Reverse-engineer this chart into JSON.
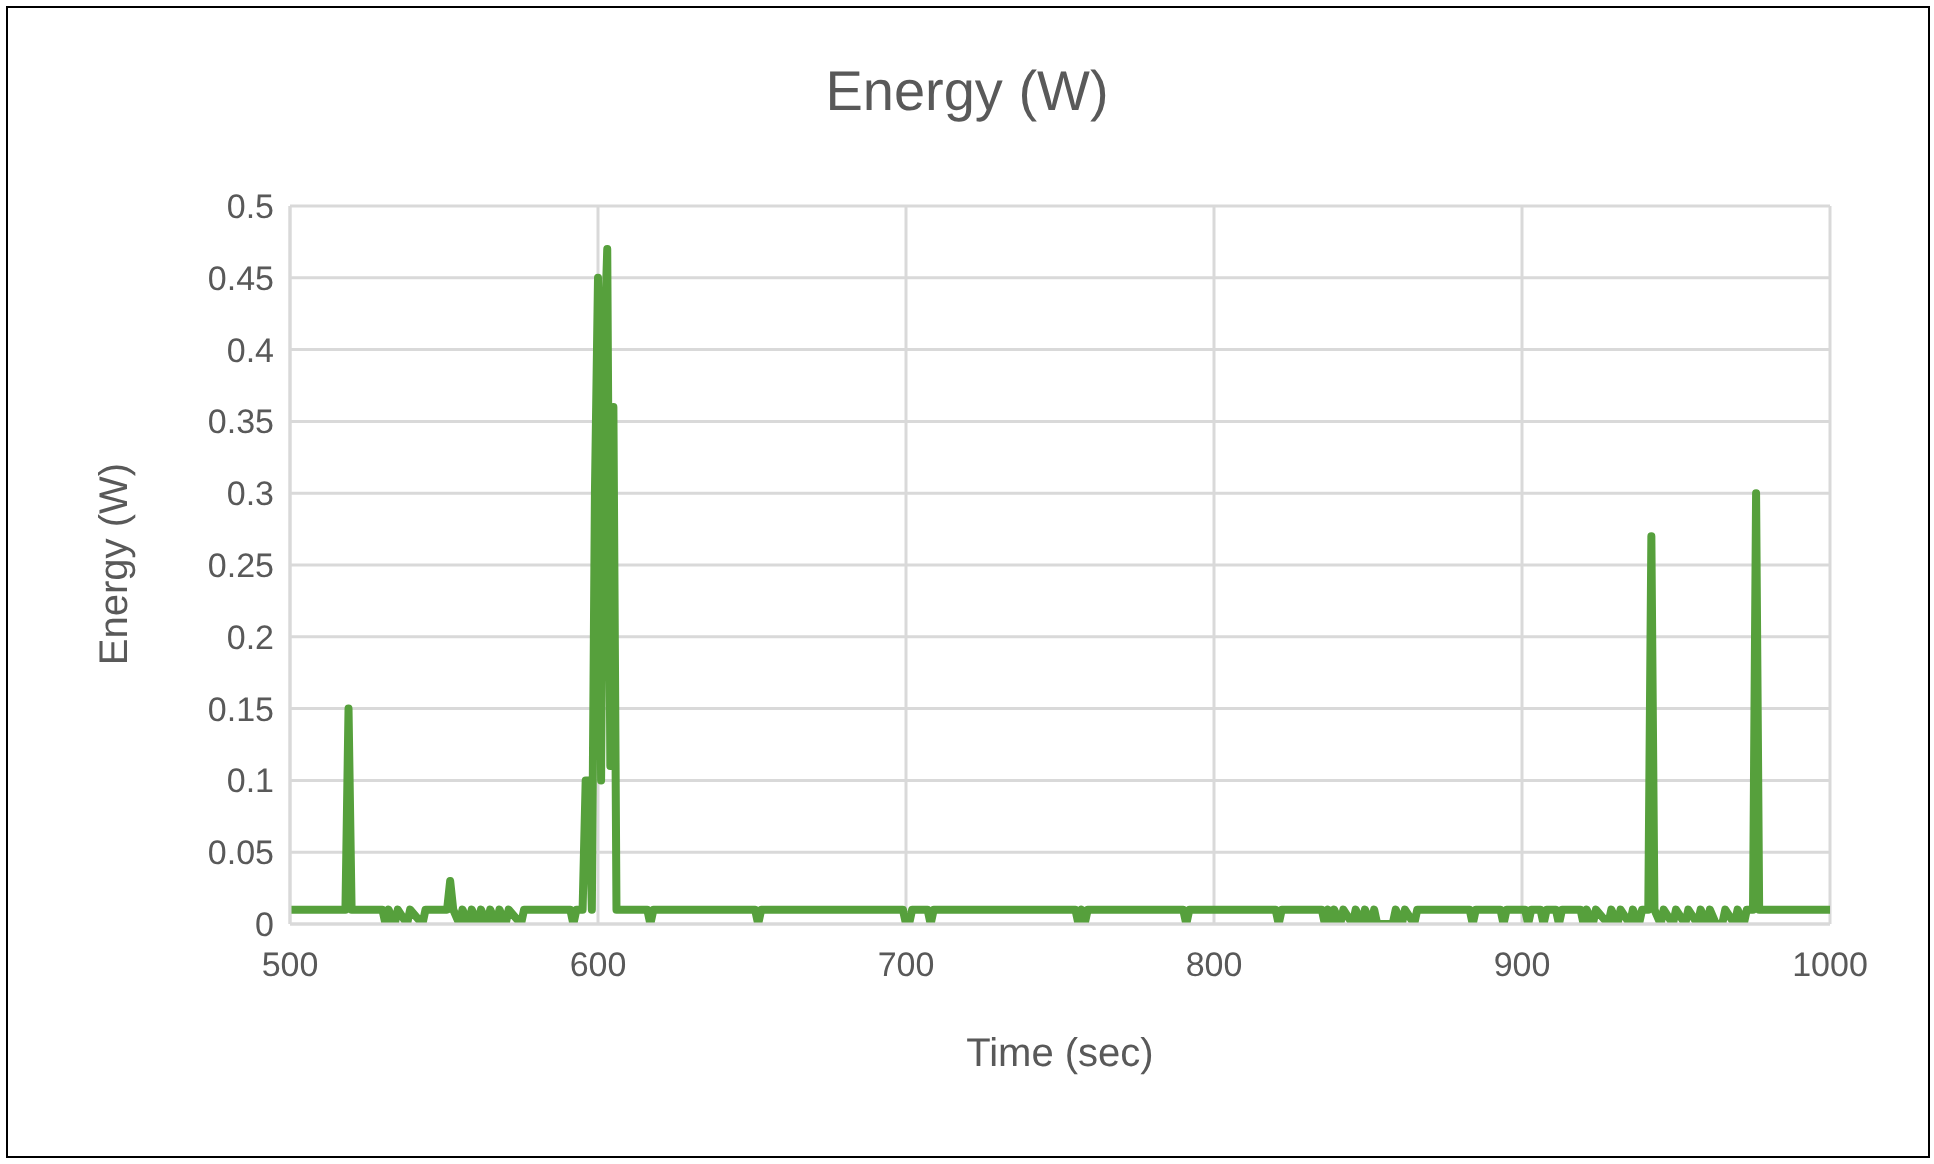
{
  "chart_data": {
    "type": "line",
    "title": "Energy (W)",
    "xlabel": "Time (sec)",
    "ylabel": "Energy (W)",
    "xlim": [
      500,
      1000
    ],
    "xticks": [
      500,
      600,
      700,
      800,
      900,
      1000
    ],
    "ylim": [
      0,
      0.5
    ],
    "yticks": [
      0,
      0.05,
      0.1,
      0.15,
      0.2,
      0.25,
      0.3,
      0.35,
      0.4,
      0.45,
      0.5
    ],
    "grid": true,
    "legend": false,
    "marker": "none",
    "line_style": "solid",
    "series": [
      {
        "color": "#56a03c",
        "x": [
          500,
          518,
          519,
          520,
          530,
          531,
          532,
          534,
          535,
          538,
          539,
          543,
          544,
          551,
          552,
          553,
          555,
          556,
          558,
          559,
          561,
          562,
          564,
          565,
          567,
          568,
          570,
          571,
          575,
          576,
          591,
          592,
          593,
          595,
          596,
          597,
          598,
          599,
          600,
          601,
          602,
          603,
          604,
          605,
          606,
          616,
          617,
          618,
          651,
          652,
          653,
          699,
          700,
          701,
          702,
          707,
          708,
          709,
          755,
          756,
          757,
          758,
          759,
          790,
          791,
          792,
          820,
          821,
          822,
          835,
          836,
          837,
          838,
          839,
          841,
          842,
          845,
          846,
          848,
          849,
          851,
          852,
          853,
          858,
          859,
          861,
          862,
          865,
          866,
          883,
          884,
          885,
          893,
          894,
          895,
          901,
          902,
          903,
          906,
          907,
          908,
          911,
          912,
          913,
          919,
          920,
          921,
          923,
          924,
          928,
          929,
          931,
          932,
          935,
          936,
          938,
          939,
          941,
          942,
          943,
          945,
          946,
          949,
          950,
          953,
          954,
          957,
          958,
          960,
          961,
          963,
          965,
          966,
          969,
          970,
          972,
          973,
          975,
          976,
          977,
          1000
        ],
        "values": [
          0.01,
          0.01,
          0.15,
          0.01,
          0.01,
          0,
          0.01,
          0,
          0.01,
          0,
          0.01,
          0,
          0.01,
          0.01,
          0.03,
          0.01,
          0,
          0.01,
          0,
          0.01,
          0,
          0.01,
          0,
          0.01,
          0,
          0.01,
          0,
          0.01,
          0,
          0.01,
          0.01,
          0,
          0.01,
          0.01,
          0.1,
          0.1,
          0.01,
          0.3,
          0.45,
          0.1,
          0.4,
          0.47,
          0.11,
          0.36,
          0.01,
          0.01,
          0,
          0.01,
          0.01,
          0,
          0.01,
          0.01,
          0,
          0,
          0.01,
          0.01,
          0,
          0.01,
          0.01,
          0,
          0.01,
          0,
          0.01,
          0.01,
          0,
          0.01,
          0.01,
          0,
          0.01,
          0.01,
          0,
          0.01,
          0,
          0.01,
          0,
          0.01,
          0,
          0.01,
          0,
          0.01,
          0,
          0.01,
          0,
          0,
          0.01,
          0,
          0.01,
          0,
          0.01,
          0.01,
          0,
          0.01,
          0.01,
          0,
          0.01,
          0.01,
          0,
          0.01,
          0.01,
          0,
          0.01,
          0.01,
          0,
          0.01,
          0.01,
          0,
          0.01,
          0,
          0.01,
          0,
          0.01,
          0,
          0.01,
          0,
          0.01,
          0,
          0.01,
          0.01,
          0.27,
          0.01,
          0,
          0.01,
          0,
          0.01,
          0,
          0.01,
          0,
          0.01,
          0,
          0.01,
          0,
          0,
          0.01,
          0,
          0.01,
          0,
          0.01,
          0.01,
          0.3,
          0.01,
          0.01
        ]
      }
    ]
  }
}
